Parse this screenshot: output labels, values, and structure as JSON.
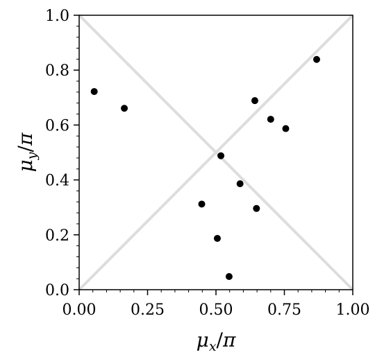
{
  "chart_data": {
    "type": "scatter",
    "title": "",
    "xlabel": "μx/π",
    "ylabel": "μy/π",
    "xlim": [
      0.0,
      1.0
    ],
    "ylim": [
      0.0,
      1.0
    ],
    "x_ticks": [
      0.0,
      0.25,
      0.5,
      0.75,
      1.0
    ],
    "x_tick_labels": [
      "0.00",
      "0.25",
      "0.50",
      "0.75",
      "1.00"
    ],
    "y_ticks": [
      0.0,
      0.2,
      0.4,
      0.6,
      0.8,
      1.0
    ],
    "y_tick_labels": [
      "0.0",
      "0.2",
      "0.4",
      "0.6",
      "0.8",
      "1.0"
    ],
    "grid": false,
    "reference_lines": [
      {
        "x": [
          0.0,
          1.0
        ],
        "y": [
          0.0,
          1.0
        ],
        "color": "#dddddd"
      },
      {
        "x": [
          0.0,
          1.0
        ],
        "y": [
          1.0,
          0.0
        ],
        "color": "#dddddd"
      }
    ],
    "series": [
      {
        "color": "#000000",
        "points": [
          {
            "x": 0.055,
            "y": 0.722
          },
          {
            "x": 0.165,
            "y": 0.661
          },
          {
            "x": 0.448,
            "y": 0.312
          },
          {
            "x": 0.505,
            "y": 0.187
          },
          {
            "x": 0.518,
            "y": 0.488
          },
          {
            "x": 0.548,
            "y": 0.048
          },
          {
            "x": 0.588,
            "y": 0.386
          },
          {
            "x": 0.642,
            "y": 0.689
          },
          {
            "x": 0.648,
            "y": 0.296
          },
          {
            "x": 0.7,
            "y": 0.621
          },
          {
            "x": 0.755,
            "y": 0.587
          },
          {
            "x": 0.868,
            "y": 0.839
          }
        ]
      }
    ]
  }
}
